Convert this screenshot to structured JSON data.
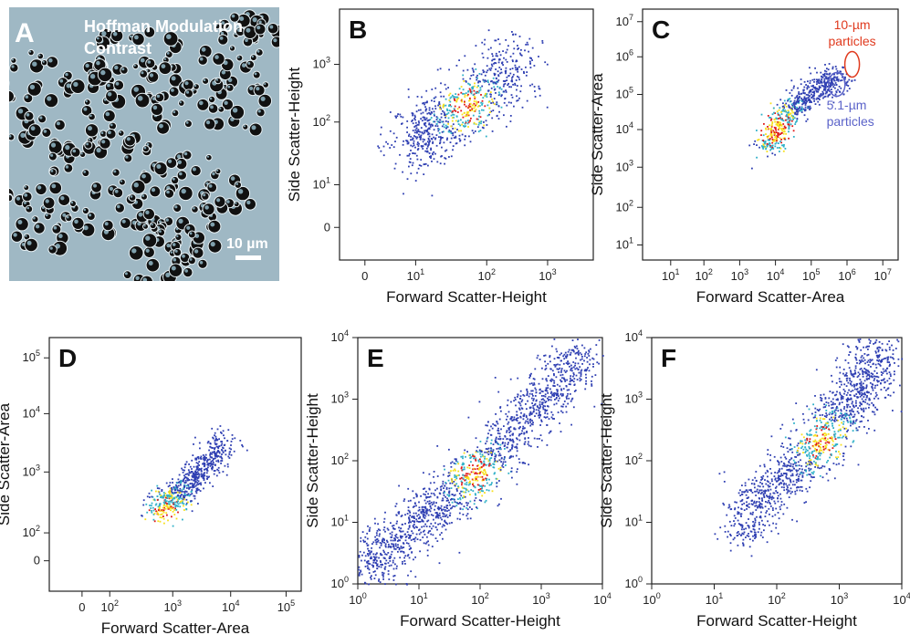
{
  "colors": {
    "density_low": "#2f3fb2",
    "density_mid": "#2fb0c8",
    "density_high": "#f7e01c",
    "density_peak": "#e01818",
    "annotation_red": "#e03a1e",
    "annotation_blue": "#5b63c9",
    "micrograph_background": "#9fb8c4"
  },
  "chart_data": [
    {
      "id": "A",
      "type": "image",
      "panel_label": "A",
      "overlay_text": [
        "Hoffman Modulation",
        "Contrast"
      ],
      "scale_bar": "10 µm"
    },
    {
      "id": "B",
      "type": "scatter",
      "density_plot": true,
      "panel_label": "B",
      "xlabel": "Forward Scatter-Height",
      "ylabel": "Side Scatter-Height",
      "xscale": "biexponential",
      "yscale": "biexponential",
      "x_ticks": [
        "0",
        "10^1",
        "10^2",
        "10^3"
      ],
      "y_ticks": [
        "0",
        "10^1",
        "10^2",
        "10^3"
      ],
      "populations": [
        {
          "x_range": [
            10,
            700
          ],
          "y_range": [
            15,
            3000
          ],
          "peak": [
            60,
            300
          ]
        }
      ]
    },
    {
      "id": "C",
      "type": "scatter",
      "density_plot": true,
      "panel_label": "C",
      "xlabel": "Forward Scatter-Area",
      "ylabel": "Side Scatter-Area",
      "xscale": "log",
      "yscale": "log",
      "x_ticks": [
        "10^1",
        "10^2",
        "10^3",
        "10^4",
        "10^5",
        "10^6",
        "10^7"
      ],
      "y_ticks": [
        "10^1",
        "10^2",
        "10^3",
        "10^4",
        "10^5",
        "10^6",
        "10^7"
      ],
      "annotations": [
        {
          "text": [
            "10-µm",
            "particles"
          ],
          "color": "red"
        },
        {
          "text": [
            "5.1-µm",
            "particles"
          ],
          "color": "blue"
        }
      ],
      "populations": [
        {
          "x_range": [
            5000,
            600000
          ],
          "y_range": [
            8000,
            800000
          ],
          "peak": [
            20000,
            30000
          ]
        }
      ]
    },
    {
      "id": "D",
      "type": "scatter",
      "density_plot": true,
      "panel_label": "D",
      "xlabel": "Forward Scatter-Area",
      "ylabel": "Side Scatter-Area",
      "xscale": "biexponential",
      "yscale": "biexponential",
      "x_ticks": [
        "0",
        "10^2",
        "10^3",
        "10^4",
        "10^5"
      ],
      "y_ticks": [
        "0",
        "10^2",
        "10^3",
        "10^4",
        "10^5"
      ],
      "populations": [
        {
          "x_range": [
            300,
            3000
          ],
          "y_range": [
            80,
            2000
          ],
          "peak": [
            700,
            180
          ]
        }
      ]
    },
    {
      "id": "E",
      "type": "scatter",
      "density_plot": true,
      "panel_label": "E",
      "xlabel": "Forward Scatter-Height",
      "ylabel": "Side Scatter-Height",
      "xscale": "log",
      "yscale": "log",
      "x_ticks": [
        "10^0",
        "10^1",
        "10^2",
        "10^3",
        "10^4"
      ],
      "y_ticks": [
        "10^0",
        "10^1",
        "10^2",
        "10^3",
        "10^4"
      ],
      "xlim": [
        1,
        10000
      ],
      "ylim": [
        1,
        10000
      ],
      "populations": [
        {
          "x_range": [
            1,
            3000
          ],
          "y_range": [
            1,
            8000
          ],
          "peak": [
            50,
            60
          ]
        }
      ]
    },
    {
      "id": "F",
      "type": "scatter",
      "density_plot": true,
      "panel_label": "F",
      "xlabel": "Forward Scatter-Height",
      "ylabel": "Side Scatter-Height",
      "xscale": "log",
      "yscale": "log",
      "x_ticks": [
        "10^0",
        "10^1",
        "10^2",
        "10^3",
        "10^4"
      ],
      "y_ticks": [
        "10^0",
        "10^1",
        "10^2",
        "10^3",
        "10^4"
      ],
      "xlim": [
        1,
        10000
      ],
      "ylim": [
        1,
        10000
      ],
      "populations": [
        {
          "x_range": [
            20,
            2000
          ],
          "y_range": [
            5,
            8000
          ],
          "peak": [
            250,
            400
          ]
        }
      ]
    }
  ]
}
